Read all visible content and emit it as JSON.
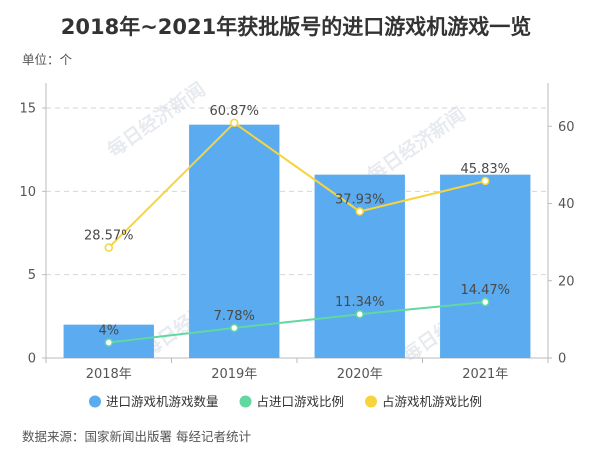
{
  "colors": {
    "bars": "#5aabef",
    "line_import": "#62d7a2",
    "line_game": "#f5d43e",
    "grid": "#d6d6d6",
    "axis_text": "#555555",
    "title": "#333333",
    "label": "#4a4a4a"
  },
  "chart_data": {
    "type": "bar",
    "title": "2018年~2021年获批版号的进口游戏机游戏一览",
    "unit_label": "单位：个",
    "source": "数据来源：国家新闻出版署 每经记者统计",
    "watermark": "每日经济新闻",
    "categories": [
      "2018年",
      "2019年",
      "2020年",
      "2021年"
    ],
    "series": [
      {
        "name": "进口游戏机游戏数量",
        "type": "bar",
        "axis": "left",
        "color": "#5aabef",
        "values": [
          2,
          14,
          11,
          11
        ]
      },
      {
        "name": "占进口游戏比例",
        "type": "line",
        "axis": "right",
        "color": "#62d7a2",
        "values": [
          4,
          7.78,
          11.34,
          14.47
        ],
        "labels": [
          "4%",
          "7.78%",
          "11.34%",
          "14.47%"
        ]
      },
      {
        "name": "占游戏机游戏比例",
        "type": "line",
        "axis": "right",
        "color": "#f5d43e",
        "values": [
          28.57,
          60.87,
          37.93,
          45.83
        ],
        "labels": [
          "28.57%",
          "60.87%",
          "37.93%",
          "45.83%"
        ]
      }
    ],
    "y_left": {
      "min": 0,
      "max": 16.5,
      "ticks": [
        0,
        5,
        10,
        15
      ]
    },
    "y_right": {
      "min": 0,
      "max": 71.2,
      "ticks": [
        0,
        20,
        40,
        60
      ]
    },
    "grid": true,
    "legend_position": "bottom"
  }
}
